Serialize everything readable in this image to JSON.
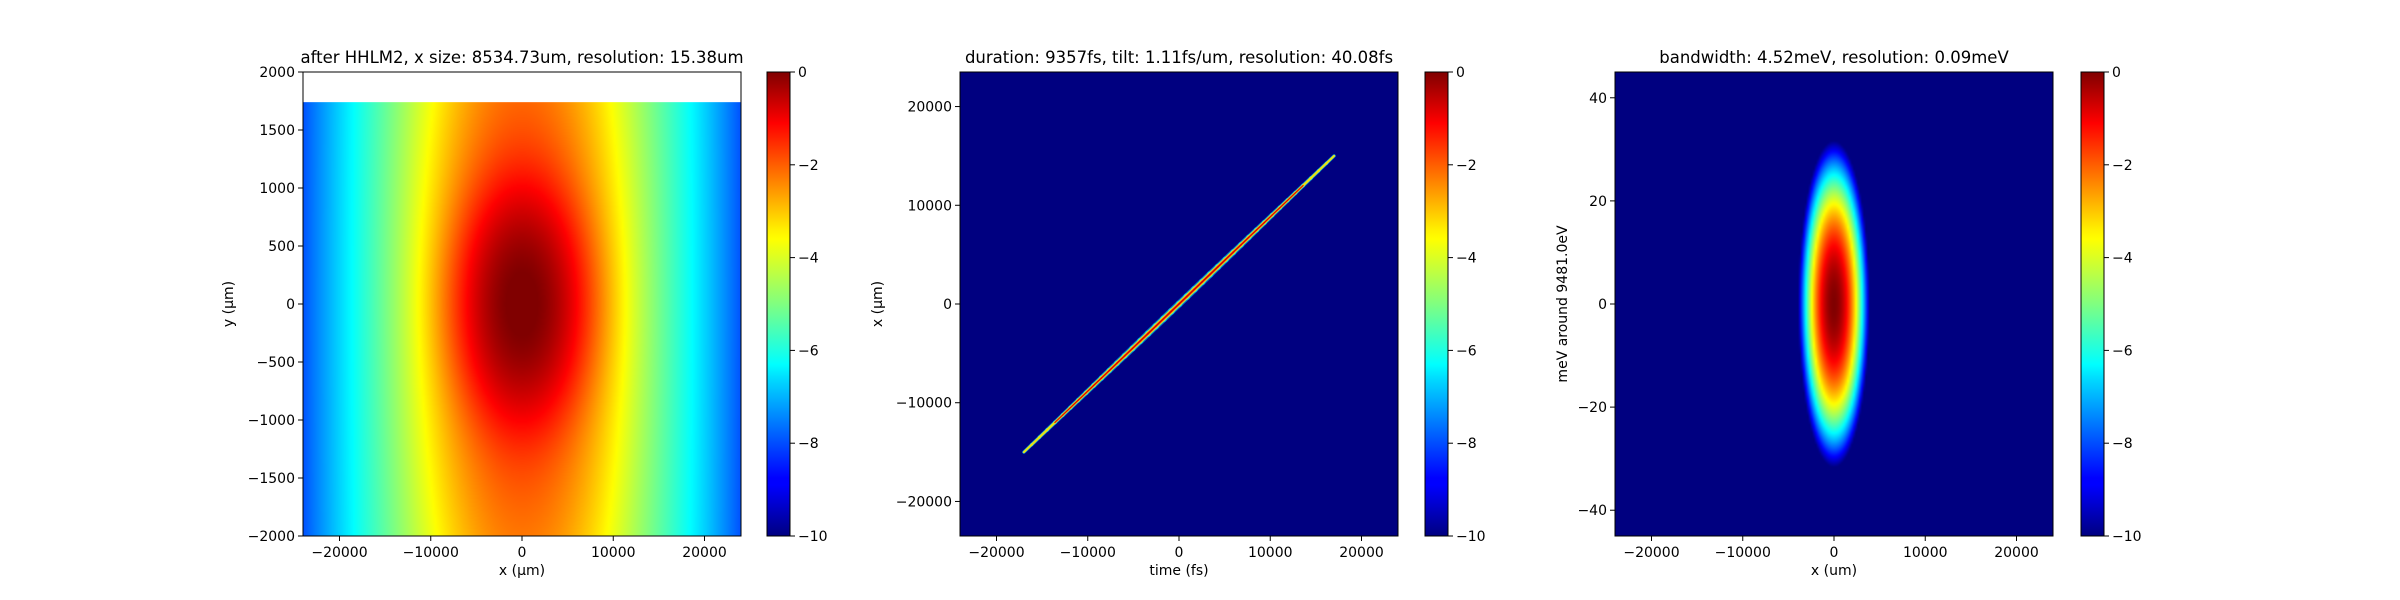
{
  "colormap": "jet",
  "background_color": "#000080",
  "chart_data": [
    {
      "type": "heatmap",
      "title": "after HHLM2, x size: 8534.73um, resolution: 15.38um",
      "xlabel": "x (μm)",
      "ylabel": "y (μm)",
      "xlim": [
        -24000,
        24000
      ],
      "ylim": [
        -2000,
        2000
      ],
      "xticks": [
        -20000,
        -10000,
        0,
        10000,
        20000
      ],
      "xtick_labels": [
        "−20000",
        "−10000",
        "0",
        "10000",
        "20000"
      ],
      "yticks": [
        -2000,
        -1500,
        -1000,
        -500,
        0,
        500,
        1000,
        1500,
        2000
      ],
      "ytick_labels": [
        "−2000",
        "−1500",
        "−1000",
        "−500",
        "0",
        "500",
        "1000",
        "1500",
        "2000"
      ],
      "data_extent": {
        "x": [
          -24000,
          24000
        ],
        "y": [
          -2000,
          1740
        ]
      },
      "beam": {
        "center_x": 0,
        "center_y": 0,
        "sigma_x_um": 3200,
        "sigma_y_um": 500,
        "halo_sigma_x_um": 4800,
        "halo_sigma_y_um": 1500
      },
      "colorbar": {
        "range": [
          -10,
          0
        ],
        "ticks": [
          0,
          -2,
          -4,
          -6,
          -8,
          -10
        ],
        "tick_labels": [
          "0",
          "−2",
          "−4",
          "−6",
          "−8",
          "−10"
        ]
      }
    },
    {
      "type": "heatmap",
      "title": "duration: 9357fs, tilt: 1.11fs/um, resolution: 40.08fs",
      "xlabel": "time (fs)",
      "ylabel": "x (μm)",
      "xlim": [
        -24000,
        24000
      ],
      "ylim": [
        -23500,
        23500
      ],
      "xticks": [
        -20000,
        -10000,
        0,
        10000,
        20000
      ],
      "xtick_labels": [
        "−20000",
        "−10000",
        "0",
        "10000",
        "20000"
      ],
      "yticks": [
        -20000,
        -10000,
        0,
        10000,
        20000
      ],
      "ytick_labels": [
        "−20000",
        "−10000",
        "0",
        "10000",
        "20000"
      ],
      "pulse": {
        "start": [
          -17000,
          -15000
        ],
        "end": [
          17000,
          15000
        ],
        "tilt_fs_per_um": 1.11
      },
      "colorbar": {
        "range": [
          -10,
          0
        ],
        "ticks": [
          0,
          -2,
          -4,
          -6,
          -8,
          -10
        ],
        "tick_labels": [
          "0",
          "−2",
          "−4",
          "−6",
          "−8",
          "−10"
        ]
      }
    },
    {
      "type": "heatmap",
      "title": "bandwidth: 4.52meV, resolution: 0.09meV",
      "xlabel": "x (um)",
      "ylabel": "meV around 9481.0eV",
      "xlim": [
        -24000,
        24000
      ],
      "ylim": [
        -45,
        45
      ],
      "xticks": [
        -20000,
        -10000,
        0,
        10000,
        20000
      ],
      "xtick_labels": [
        "−20000",
        "−10000",
        "0",
        "10000",
        "20000"
      ],
      "yticks": [
        -40,
        -20,
        0,
        20,
        40
      ],
      "ytick_labels": [
        "−40",
        "−20",
        "0",
        "20",
        "40"
      ],
      "spot": {
        "center_x": 0,
        "center_y": 0,
        "sigma_x_um": 1300,
        "sigma_y_mev": 10.5
      },
      "colorbar": {
        "range": [
          -10,
          0
        ],
        "ticks": [
          0,
          -2,
          -4,
          -6,
          -8,
          -10
        ],
        "tick_labels": [
          "0",
          "−2",
          "−4",
          "−6",
          "−8",
          "−10"
        ]
      }
    }
  ]
}
